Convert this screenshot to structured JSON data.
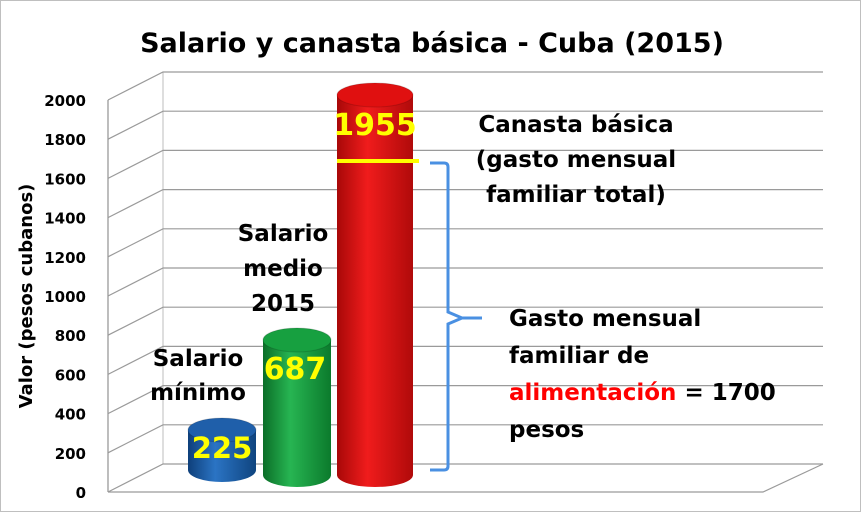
{
  "chart_data": {
    "type": "bar",
    "title": "Salario y canasta básica - Cuba (2015)",
    "ylabel": "Valor (pesos cubanos)",
    "ylim": [
      0,
      2000
    ],
    "yticks": [
      "0",
      "200",
      "400",
      "600",
      "800",
      "1000",
      "1200",
      "1400",
      "1600",
      "1800",
      "2000"
    ],
    "grid": true,
    "categories": [
      "Salario mínimo",
      "Salario medio 2015",
      "Canasta básica"
    ],
    "values": [
      225,
      687,
      1955
    ],
    "value_labels": [
      "225",
      "687",
      "1955"
    ],
    "category_label_lines": [
      [
        "Salario",
        "mínimo"
      ],
      [
        "Salario",
        "medio",
        "2015"
      ],
      [
        "Canasta básica",
        "(gasto mensual",
        "familiar total)"
      ]
    ],
    "bar_colors": [
      "#1f5faa",
      "#17a040",
      "#e01010"
    ],
    "marker": {
      "value": 1700,
      "color": "#ffff00"
    },
    "annotation": {
      "lines": [
        "Gasto mensual",
        "familiar de"
      ],
      "highlight": "alimentación",
      "highlight_color": "#ff0000",
      "suffix": " = 1700",
      "last": "pesos",
      "bracket_range": [
        0,
        1700
      ]
    }
  }
}
